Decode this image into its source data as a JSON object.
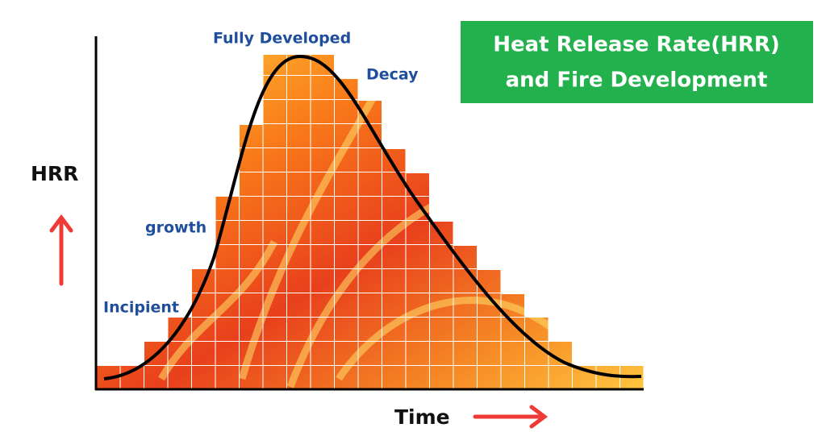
{
  "title": {
    "lines": [
      "Heat Release Rate(HRR)",
      "and Fire Development"
    ]
  },
  "axes": {
    "y_label": "HRR",
    "x_label": "Time"
  },
  "stages": {
    "incipient": "Incipient",
    "growth": "growth",
    "fully_developed": "Fully Developed",
    "decay": "Decay"
  }
}
